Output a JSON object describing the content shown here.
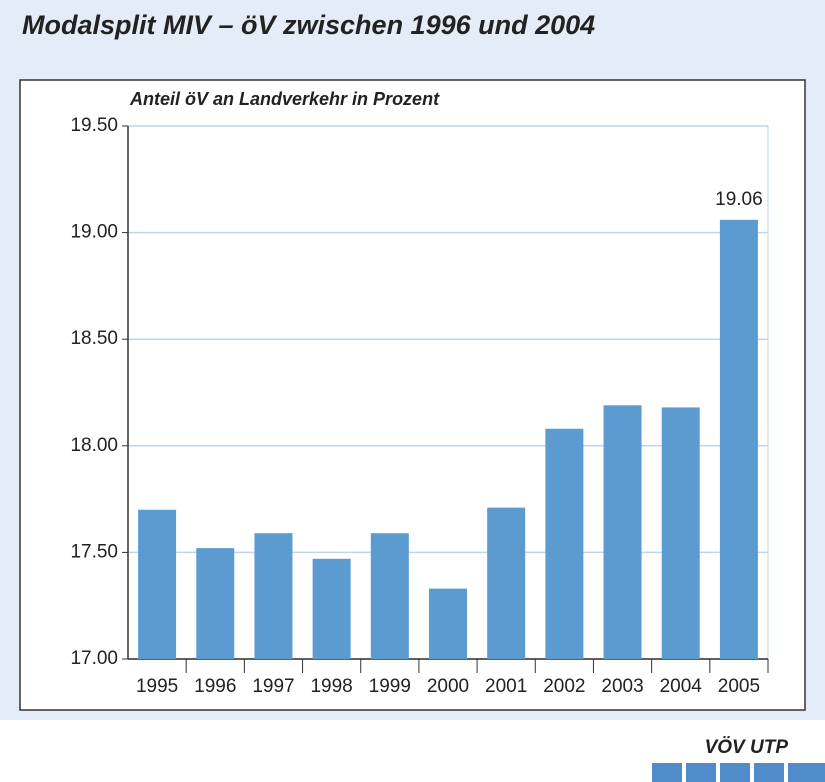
{
  "chart_data": {
    "type": "bar",
    "title": "Modalsplit MIV – öV zwischen 1996 und 2004",
    "subtitle": "Anteil öV an Landverkehr in Prozent",
    "categories": [
      "1995",
      "1996",
      "1997",
      "1998",
      "1999",
      "2000",
      "2001",
      "2002",
      "2003",
      "2004",
      "2005"
    ],
    "values": [
      17.7,
      17.52,
      17.59,
      17.47,
      17.59,
      17.33,
      17.71,
      18.08,
      18.19,
      18.18,
      19.06
    ],
    "color": "#5b9bd0",
    "ylim": [
      17.0,
      19.5
    ],
    "yticks": [
      {
        "value": 17,
        "label": "17.00"
      },
      {
        "value": 17.5,
        "label": "17.50"
      },
      {
        "value": 18,
        "label": "18.00"
      },
      {
        "value": 18.5,
        "label": "18.50"
      },
      {
        "value": 19,
        "label": "19.00"
      },
      {
        "value": 19.5,
        "label": "19.50"
      }
    ],
    "grid": true,
    "source": "VÖV UTP"
  }
}
